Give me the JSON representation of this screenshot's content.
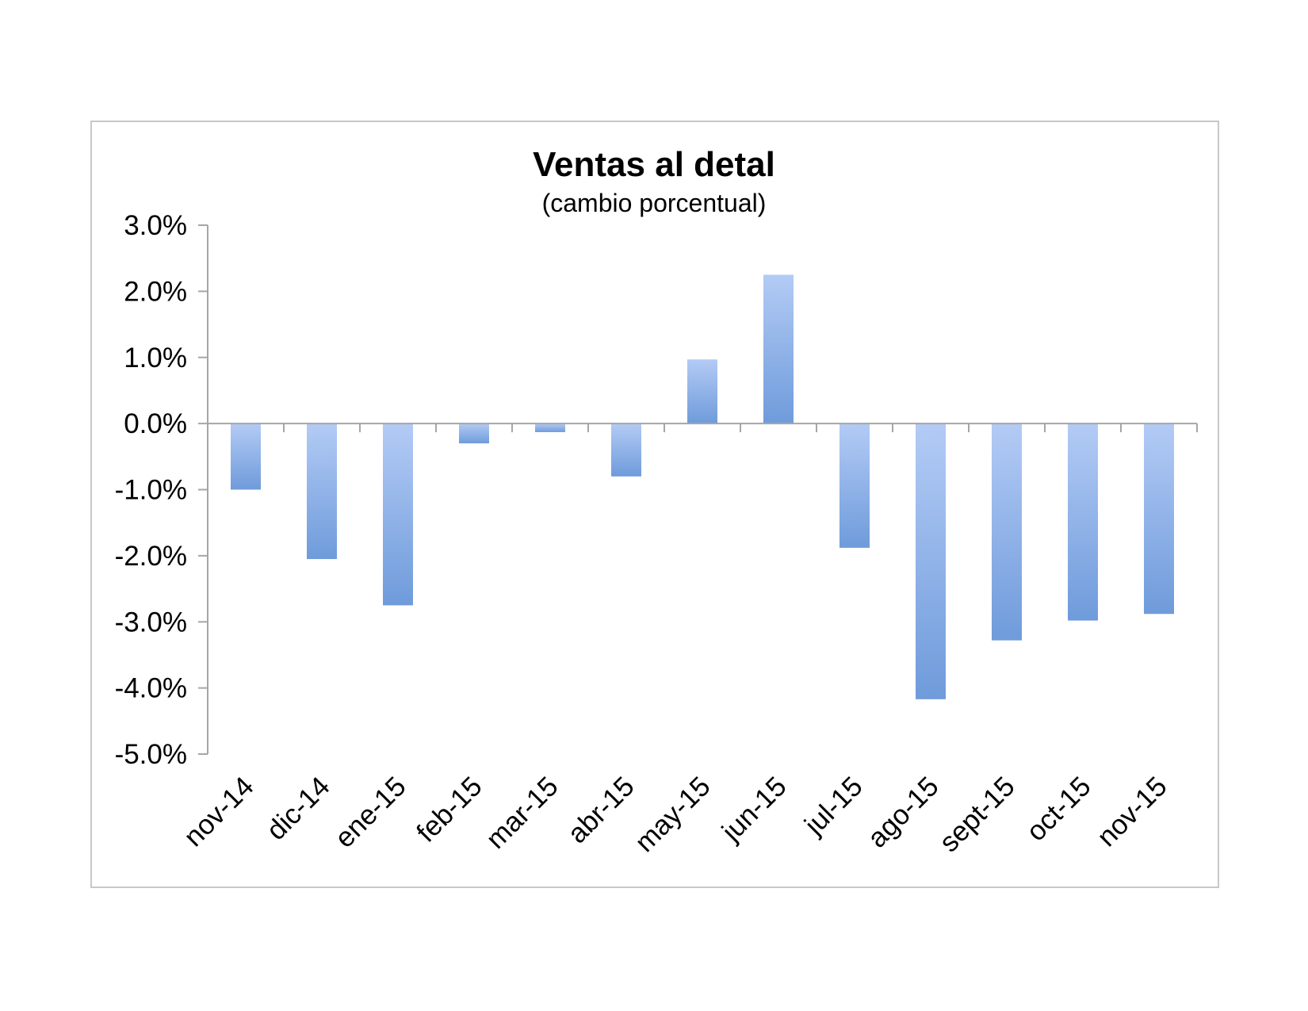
{
  "chart_data": {
    "type": "bar",
    "title": "Ventas al detal",
    "subtitle": "(cambio porcentual)",
    "xlabel": "",
    "ylabel": "",
    "ylim": [
      -5.0,
      3.0
    ],
    "yticks": [
      3.0,
      2.0,
      1.0,
      0.0,
      -1.0,
      -2.0,
      -3.0,
      -4.0,
      -5.0
    ],
    "ytick_labels": [
      "3.0%",
      "2.0%",
      "1.0%",
      "0.0%",
      "-1.0%",
      "-2.0%",
      "-3.0%",
      "-4.0%",
      "-5.0%"
    ],
    "categories": [
      "nov-14",
      "dic-14",
      "ene-15",
      "feb-15",
      "mar-15",
      "abr-15",
      "may-15",
      "jun-15",
      "jul-15",
      "ago-15",
      "sept-15",
      "oct-15",
      "nov-15"
    ],
    "values": [
      -1.0,
      -2.05,
      -2.75,
      -0.3,
      -0.13,
      -0.8,
      0.97,
      2.25,
      -1.88,
      -4.17,
      -3.28,
      -2.98,
      -2.88
    ],
    "grid": false,
    "legend": "none",
    "colors": {
      "bar_light": "#b3cbf5",
      "bar_dark": "#6f9bdb",
      "axis": "#a6a6a6"
    }
  }
}
